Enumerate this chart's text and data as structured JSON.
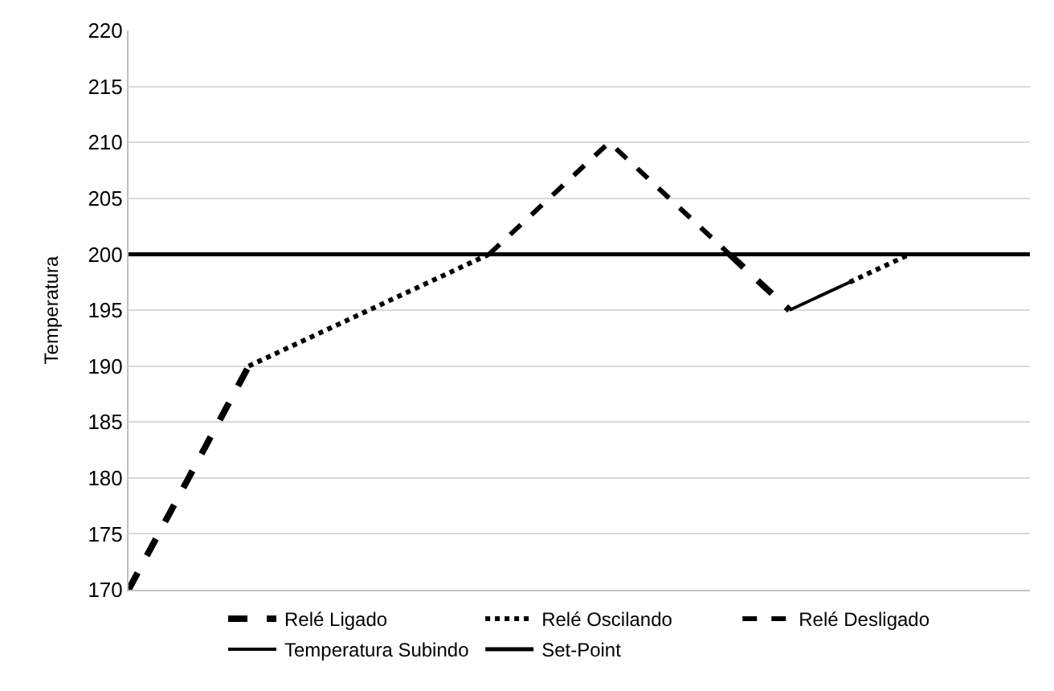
{
  "chart_data": {
    "type": "line",
    "ylabel": "Temperatura",
    "categories": [
      null,
      null,
      null,
      null,
      null,
      null,
      null,
      null,
      null,
      null,
      null,
      null,
      null,
      null,
      null,
      null
    ],
    "series": [
      {
        "name": "Relé Ligado",
        "color": "#000000",
        "line_style": "dashed",
        "values": [
          170,
          180,
          190,
          null,
          null,
          null,
          null,
          null,
          null,
          null,
          200,
          195,
          null,
          null,
          null,
          null
        ]
      },
      {
        "name": "Relé Oscilando",
        "color": "#000000",
        "line_style": "dotted",
        "values": [
          null,
          null,
          190,
          192.5,
          195,
          197.5,
          200,
          null,
          null,
          null,
          null,
          null,
          197.5,
          200,
          null,
          null
        ]
      },
      {
        "name": "Relé Desligado",
        "color": "#000000",
        "line_style": "dashed",
        "values": [
          null,
          null,
          null,
          null,
          null,
          null,
          200,
          205,
          210,
          205,
          200,
          null,
          null,
          null,
          null,
          null
        ]
      },
      {
        "name": "Temperatura Subindo",
        "color": "#000000",
        "line_style": "solid",
        "values": [
          null,
          null,
          null,
          null,
          null,
          null,
          null,
          null,
          null,
          null,
          null,
          195,
          197.5,
          null,
          null,
          null
        ]
      },
      {
        "name": "Set-Point",
        "color": "#000000",
        "line_style": "solid",
        "values": [
          200,
          200,
          200,
          200,
          200,
          200,
          200,
          200,
          200,
          200,
          200,
          200,
          200,
          200,
          200,
          200
        ]
      }
    ],
    "ylim": [
      170,
      220
    ],
    "yticks": [
      170,
      175,
      180,
      185,
      190,
      195,
      200,
      205,
      210,
      215,
      220
    ],
    "grid": "y",
    "legend": "bottom",
    "tick_labels": "y",
    "marker": "none"
  }
}
